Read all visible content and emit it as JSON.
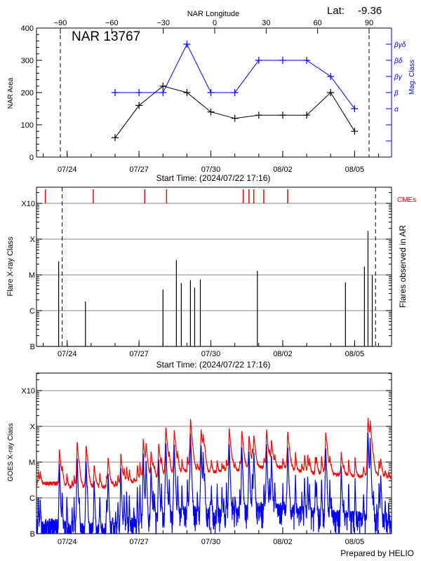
{
  "chart_data": [
    {
      "type": "line",
      "title": "NAR 13767",
      "lat_label": "Lat:",
      "lat_value": "-9.36",
      "xlabel": "Start Time: (2024/07/22 17:16)",
      "xlim": [
        "2024-07-22 17:16",
        "2024-08-06 13:00"
      ],
      "x_tick_labels": [
        "07/24",
        "07/27",
        "07/30",
        "08/02",
        "08/05"
      ],
      "top_axis": {
        "label": "NAR Longitude",
        "ticks": [
          -90,
          -60,
          -30,
          0,
          30,
          60,
          90
        ],
        "limb_markers": [
          -90,
          90
        ]
      },
      "ylabel": "NAR Area",
      "ylim": [
        0,
        400
      ],
      "y_ticks": [
        0,
        100,
        200,
        300,
        400
      ],
      "y2label": "Mag. Class",
      "y2_ticks": [
        {
          "label": "α",
          "value": 150
        },
        {
          "label": "β",
          "value": 200
        },
        {
          "label": "βγ",
          "value": 250
        },
        {
          "label": "βδ",
          "value": 300
        },
        {
          "label": "βγδ",
          "value": 350
        }
      ],
      "x": [
        "07/26",
        "07/27",
        "07/28",
        "07/29",
        "07/30",
        "07/31",
        "08/01",
        "08/02",
        "08/03",
        "08/04",
        "08/05"
      ],
      "series": [
        {
          "name": "NAR Area",
          "color": "#000000",
          "values": [
            60,
            160,
            220,
            200,
            140,
            120,
            130,
            130,
            130,
            200,
            80
          ]
        },
        {
          "name": "Mag. Class",
          "color": "#0000ff",
          "classes": [
            "β",
            "β",
            "β",
            "βγδ",
            "β",
            "β",
            "βδ",
            "βδ",
            "βδ",
            "βγ",
            "α"
          ],
          "values": [
            200,
            200,
            200,
            350,
            200,
            200,
            300,
            300,
            300,
            250,
            150
          ]
        }
      ]
    },
    {
      "type": "bar",
      "xlabel": "Start Time: (2024/07/22 17:16)",
      "x_tick_labels": [
        "07/24",
        "07/27",
        "07/30",
        "08/02",
        "08/05"
      ],
      "ylabel": "Flare X-ray Class",
      "y2label": "Flares observed in AR",
      "y_scale": "log",
      "y_ticks": [
        {
          "label": "B",
          "flux": 1e-07
        },
        {
          "label": "C",
          "flux": 1e-06
        },
        {
          "label": "M",
          "flux": 1e-05
        },
        {
          "label": "X",
          "flux": 0.0001
        },
        {
          "label": "X10",
          "flux": 0.001
        }
      ],
      "grid": true,
      "limb_markers": [
        "07/23 19:00",
        "08/05 21:00"
      ],
      "flares": [
        {
          "time": "07/23 15:30",
          "flux": 2.4e-05
        },
        {
          "time": "07/24 18:20",
          "flux": 1.8e-06
        },
        {
          "time": "07/28 00:00",
          "flux": 3.9e-06
        },
        {
          "time": "07/28 13:25",
          "flux": 2.6e-05
        },
        {
          "time": "07/28 18:20",
          "flux": 5.9e-06
        },
        {
          "time": "07/29 03:30",
          "flux": 7.1e-06
        },
        {
          "time": "07/29 07:45",
          "flux": 4.4e-06
        },
        {
          "time": "07/29 13:25",
          "flux": 7.4e-06
        },
        {
          "time": "07/31 22:35",
          "flux": 1.3e-05
        },
        {
          "time": "08/04 14:50",
          "flux": 6.2e-06
        },
        {
          "time": "08/05 09:50",
          "flux": 1.7e-05
        },
        {
          "time": "08/05 13:25",
          "flux": 0.00017
        },
        {
          "time": "08/05 17:40",
          "flux": 1e-05
        }
      ],
      "cme_label": "CMEs",
      "cme_color": "#ff0000",
      "cmes": [
        "07/23 02:10",
        "07/25 02:10",
        "07/27 05:45",
        "07/28 03:35",
        "07/31 08:25",
        "07/31 14:10",
        "07/31 19:00",
        "08/01 05:00",
        "08/02 05:00"
      ]
    },
    {
      "type": "line",
      "ylabel": "GOES X-ray Class",
      "x_tick_labels": [
        "07/24",
        "07/27",
        "07/30",
        "08/02",
        "08/05"
      ],
      "y_scale": "log",
      "y_ticks": [
        {
          "label": "B",
          "flux": 1e-07
        },
        {
          "label": "C",
          "flux": 1e-06
        },
        {
          "label": "M",
          "flux": 1e-05
        },
        {
          "label": "X",
          "flux": 0.0001
        },
        {
          "label": "X10",
          "flux": 0.001
        }
      ],
      "grid": true,
      "series": [
        {
          "channel": "long",
          "color": "#ff0000",
          "background": [
            [
              "07/22 17:00",
              2.5e-06
            ],
            [
              "07/23 12:00",
              2.5e-06
            ],
            [
              "07/24 06:00",
              1.8e-06
            ],
            [
              "07/25 00:00",
              1.9e-06
            ],
            [
              "07/26 00:00",
              2e-06
            ],
            [
              "07/27 00:00",
              3e-06
            ],
            [
              "07/28 00:00",
              3.8e-06
            ],
            [
              "07/29 00:00",
              5.5e-06
            ],
            [
              "07/30 00:00",
              5e-06
            ],
            [
              "07/31 00:00",
              5.5e-06
            ],
            [
              "08/01 00:00",
              7e-06
            ],
            [
              "08/02 00:00",
              7e-06
            ],
            [
              "08/03 00:00",
              5e-06
            ],
            [
              "08/04 00:00",
              4.5e-06
            ],
            [
              "08/05 00:00",
              4e-06
            ],
            [
              "08/06 13:00",
              3.5e-06
            ]
          ],
          "peaks": [
            [
              "07/23 16:15",
              2.3e-05
            ],
            [
              "07/24 10:00",
              3.7e-05
            ],
            [
              "07/24 19:00",
              3.1e-05
            ],
            [
              "07/25 03:00",
              8.7e-06
            ],
            [
              "07/25 17:00",
              1.4e-05
            ],
            [
              "07/26 05:45",
              1.7e-05
            ],
            [
              "07/27 04:15",
              4.3e-05
            ],
            [
              "07/27 07:00",
              3.2e-05
            ],
            [
              "07/27 12:00",
              2.1e-05
            ],
            [
              "07/27 19:40",
              3.5e-05
            ],
            [
              "07/28 02:50",
              0.0001
            ],
            [
              "07/28 11:15",
              7.9e-05
            ],
            [
              "07/29 03:35",
              0.00016
            ],
            [
              "07/29 14:10",
              8.7e-05
            ],
            [
              "07/29 16:15",
              4.7e-05
            ],
            [
              "07/30 18:20",
              9.5e-05
            ],
            [
              "07/31 07:00",
              7.9e-05
            ],
            [
              "07/31 14:10",
              5.8e-05
            ],
            [
              "07/31 19:00",
              5.6e-05
            ],
            [
              "08/01 07:45",
              8.3e-05
            ],
            [
              "08/01 12:40",
              4.3e-05
            ],
            [
              "08/02 05:00",
              7.6e-05
            ],
            [
              "08/03 19:00",
              7.2e-05
            ],
            [
              "08/04 10:35",
              1.9e-05
            ],
            [
              "08/05 13:25",
              0.00017
            ],
            [
              "08/05 15:35",
              0.00012
            ],
            [
              "08/06 02:10",
              1.2e-05
            ]
          ]
        },
        {
          "channel": "short",
          "color": "#0000ff"
        }
      ]
    }
  ],
  "footer": "Prepared by HELIO"
}
